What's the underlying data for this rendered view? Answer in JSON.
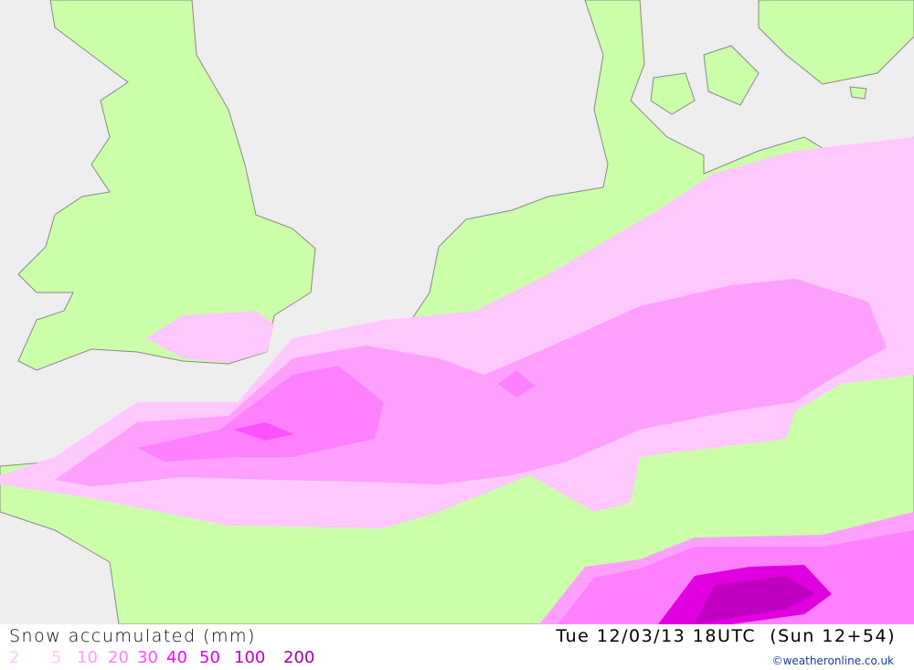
{
  "map": {
    "colors": {
      "sea": "#eeeeee",
      "land": "#ccffaa",
      "coast": "#888888"
    },
    "legend": [
      {
        "label": "2",
        "color": "#ffc8ff"
      },
      {
        "label": "5",
        "color": "#ffc8ff"
      },
      {
        "label": "10",
        "color": "#ffa0ff"
      },
      {
        "label": "20",
        "color": "#ff80ff"
      },
      {
        "label": "30",
        "color": "#ff50ff"
      },
      {
        "label": "40",
        "color": "#ff00ff"
      },
      {
        "label": "50",
        "color": "#e000e0"
      },
      {
        "label": "100",
        "color": "#c000c0"
      },
      {
        "label": "200",
        "color": "#a000a0"
      }
    ]
  },
  "footer": {
    "title": "Snow accumulated (mm)",
    "valid_time": "Tue 12/03/13 18UTC  (Sun 12+54)",
    "copyright": "©weatheronline.co.uk"
  }
}
